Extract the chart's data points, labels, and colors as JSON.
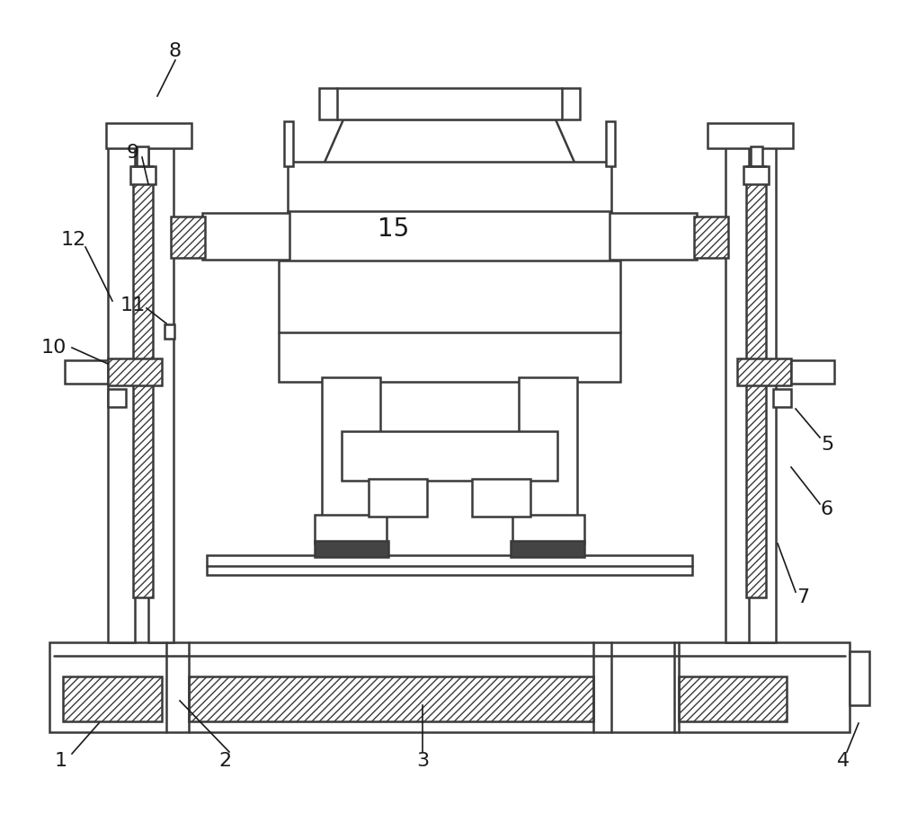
{
  "bg_color": "#ffffff",
  "lc": "#3a3a3a",
  "lw": 1.8,
  "fs": 16,
  "label_color": "#1a1a1a",
  "figsize": [
    10.0,
    9.15
  ],
  "dpi": 100
}
